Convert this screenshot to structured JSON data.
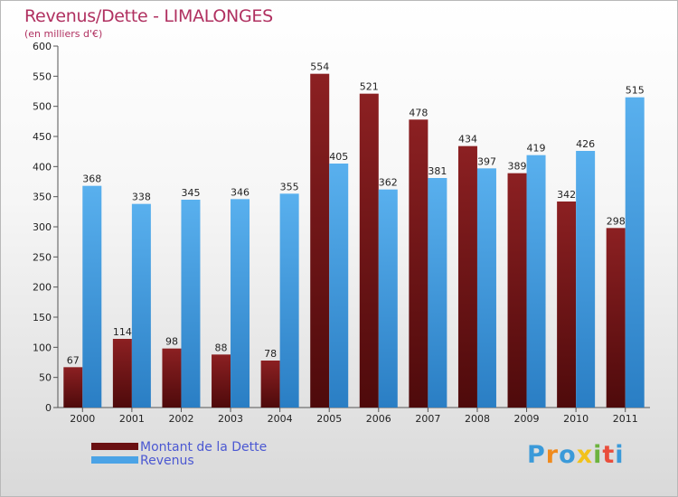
{
  "chart_data": {
    "type": "bar",
    "title": "Revenus/Dette - LIMALONGES",
    "subtitle": "(en milliers d'€)",
    "categories": [
      "2000",
      "2001",
      "2002",
      "2003",
      "2004",
      "2005",
      "2006",
      "2007",
      "2008",
      "2009",
      "2010",
      "2011"
    ],
    "series": [
      {
        "name": "Montant de la Dette",
        "color": "#7a1516",
        "values": [
          67,
          114,
          98,
          88,
          78,
          554,
          521,
          478,
          434,
          389,
          342,
          298
        ]
      },
      {
        "name": "Revenus",
        "color": "#4ba3e6",
        "values": [
          368,
          338,
          345,
          346,
          355,
          405,
          362,
          381,
          397,
          419,
          426,
          515
        ]
      }
    ],
    "ylim": [
      0,
      600
    ],
    "yticks": [
      0,
      50,
      100,
      150,
      200,
      250,
      300,
      350,
      400,
      450,
      500,
      550,
      600
    ],
    "grid": false,
    "legend_position": "bottom-left"
  },
  "logo": {
    "text": "Proxiti",
    "letters": [
      {
        "ch": "P",
        "color": "#3b9ad9"
      },
      {
        "ch": "r",
        "color": "#f08a1c"
      },
      {
        "ch": "o",
        "color": "#3b9ad9"
      },
      {
        "ch": "x",
        "color": "#f2c21b"
      },
      {
        "ch": "i",
        "color": "#6cb33e"
      },
      {
        "ch": "t",
        "color": "#e94e3c"
      },
      {
        "ch": "i",
        "color": "#3b9ad9"
      }
    ]
  }
}
